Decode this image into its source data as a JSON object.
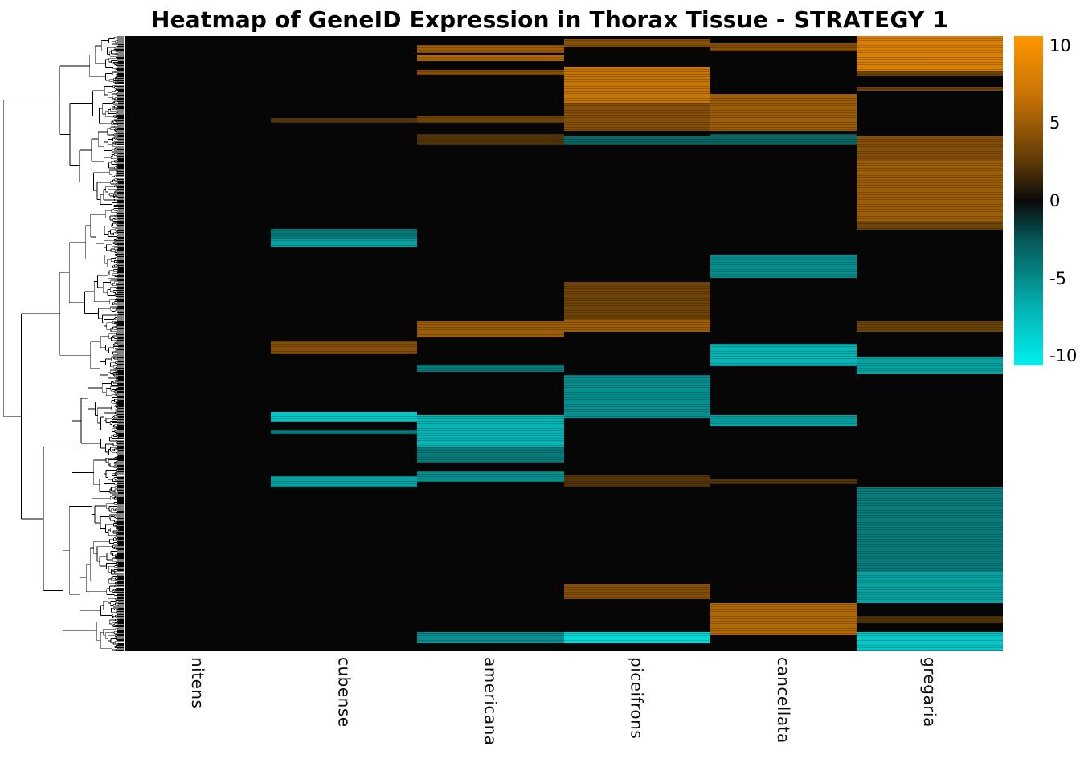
{
  "title": "Heatmap of GeneID Expression in Thorax Tissue - STRATEGY 1",
  "chart_data": {
    "type": "heatmap",
    "title": "Heatmap of GeneID Expression in Thorax Tissue - STRATEGY 1",
    "columns": [
      "nitens",
      "cubense",
      "americana",
      "piceifrons",
      "cancellata",
      "gregaria"
    ],
    "dendrogram_position": "left",
    "legend_position": "right",
    "value_scale": {
      "min": -10,
      "max": 10,
      "ticks": [
        10,
        5,
        0,
        -5,
        -10
      ]
    },
    "colors": {
      "positive": "#FF9600",
      "zero": "#0A0A0A",
      "negative": "#00F0F0"
    },
    "bands_note": "from/to are fractions of heatmap height measured from the top; value is estimated expression on the -10..10 colorbar scale (0 = black, positive = orange, negative = cyan)",
    "bands": {
      "nitens": [],
      "cubense": [
        {
          "from": 0.133,
          "to": 0.141,
          "value": 2
        },
        {
          "from": 0.314,
          "to": 0.33,
          "value": -4
        },
        {
          "from": 0.33,
          "to": 0.344,
          "value": -6
        },
        {
          "from": 0.497,
          "to": 0.518,
          "value": 4
        },
        {
          "from": 0.612,
          "to": 0.627,
          "value": -8
        },
        {
          "from": 0.64,
          "to": 0.648,
          "value": -4
        },
        {
          "from": 0.716,
          "to": 0.734,
          "value": -6
        }
      ],
      "americana": [
        {
          "from": 0.014,
          "to": 0.028,
          "value": 5
        },
        {
          "from": 0.03,
          "to": 0.04,
          "value": 6
        },
        {
          "from": 0.055,
          "to": 0.064,
          "value": 4
        },
        {
          "from": 0.13,
          "to": 0.141,
          "value": 3
        },
        {
          "from": 0.16,
          "to": 0.176,
          "value": 2
        },
        {
          "from": 0.464,
          "to": 0.49,
          "value": 5
        },
        {
          "from": 0.535,
          "to": 0.547,
          "value": -4
        },
        {
          "from": 0.617,
          "to": 0.668,
          "value": -7
        },
        {
          "from": 0.668,
          "to": 0.694,
          "value": -4
        },
        {
          "from": 0.709,
          "to": 0.726,
          "value": -5
        },
        {
          "from": 0.97,
          "to": 0.988,
          "value": -5
        }
      ],
      "piceifrons": [
        {
          "from": 0.004,
          "to": 0.018,
          "value": 4
        },
        {
          "from": 0.05,
          "to": 0.108,
          "value": 7
        },
        {
          "from": 0.108,
          "to": 0.154,
          "value": 4
        },
        {
          "from": 0.162,
          "to": 0.177,
          "value": -3
        },
        {
          "from": 0.4,
          "to": 0.462,
          "value": 3
        },
        {
          "from": 0.462,
          "to": 0.481,
          "value": 5
        },
        {
          "from": 0.552,
          "to": 0.622,
          "value": -5
        },
        {
          "from": 0.715,
          "to": 0.733,
          "value": 2
        },
        {
          "from": 0.892,
          "to": 0.916,
          "value": 4
        },
        {
          "from": 0.97,
          "to": 0.988,
          "value": -9
        }
      ],
      "cancellata": [
        {
          "from": 0.012,
          "to": 0.025,
          "value": 4
        },
        {
          "from": 0.094,
          "to": 0.154,
          "value": 5
        },
        {
          "from": 0.16,
          "to": 0.176,
          "value": -3
        },
        {
          "from": 0.356,
          "to": 0.393,
          "value": -5
        },
        {
          "from": 0.5,
          "to": 0.537,
          "value": -7
        },
        {
          "from": 0.617,
          "to": 0.635,
          "value": -6
        },
        {
          "from": 0.722,
          "to": 0.73,
          "value": 2
        },
        {
          "from": 0.923,
          "to": 0.975,
          "value": 6
        }
      ],
      "gregaria": [
        {
          "from": 0.0,
          "to": 0.057,
          "value": 8
        },
        {
          "from": 0.057,
          "to": 0.066,
          "value": 3
        },
        {
          "from": 0.082,
          "to": 0.089,
          "value": 3
        },
        {
          "from": 0.162,
          "to": 0.204,
          "value": 4
        },
        {
          "from": 0.204,
          "to": 0.302,
          "value": 5
        },
        {
          "from": 0.302,
          "to": 0.315,
          "value": 3
        },
        {
          "from": 0.464,
          "to": 0.481,
          "value": 3
        },
        {
          "from": 0.522,
          "to": 0.55,
          "value": -6
        },
        {
          "from": 0.735,
          "to": 0.872,
          "value": -4
        },
        {
          "from": 0.872,
          "to": 0.923,
          "value": -6
        },
        {
          "from": 0.944,
          "to": 0.955,
          "value": 2
        },
        {
          "from": 0.97,
          "to": 1.0,
          "value": -8
        }
      ]
    }
  }
}
